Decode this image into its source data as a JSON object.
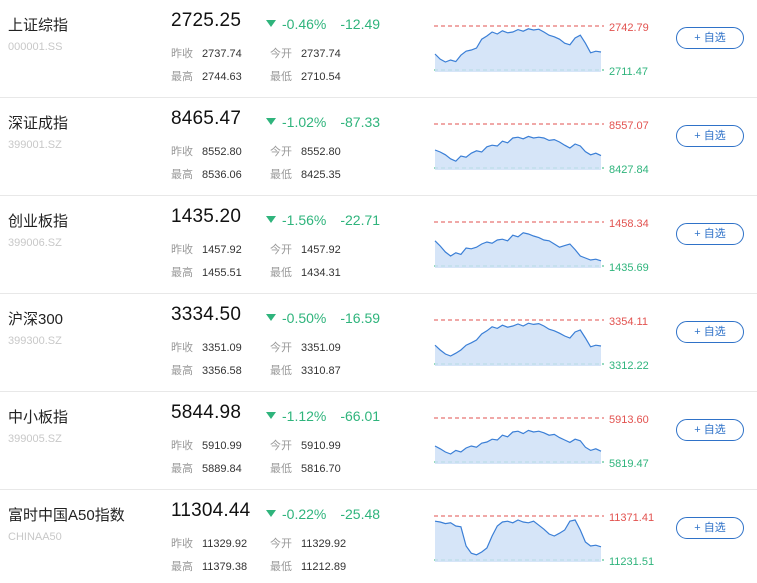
{
  "labels": {
    "prev_close": "昨收",
    "open": "今开",
    "high": "最高",
    "low": "最低",
    "add": "+ 自选"
  },
  "colors": {
    "down": "#2fb47c",
    "up_line": "#e2524f",
    "button": "#2f72c8",
    "chart_line": "#3b7fd6",
    "chart_fill": "#cfe1f7"
  },
  "icons": {
    "change_indicator": "triangle-down-icon"
  },
  "indices": [
    {
      "name": "上证综指",
      "code": "000001.SS",
      "price": "2725.25",
      "change_pct": "-0.46%",
      "change": "-12.49",
      "prev_close": "2737.74",
      "open": "2737.74",
      "high": "2744.63",
      "low": "2710.54",
      "chart_high": "2742.79",
      "chart_low": "2711.47",
      "spark": [
        0.35,
        0.22,
        0.15,
        0.2,
        0.16,
        0.32,
        0.42,
        0.45,
        0.5,
        0.72,
        0.8,
        0.9,
        0.85,
        0.93,
        0.88,
        0.9,
        0.96,
        0.92,
        0.98,
        0.95,
        0.97,
        0.9,
        0.82,
        0.78,
        0.72,
        0.62,
        0.58,
        0.75,
        0.82,
        0.62,
        0.38,
        0.42,
        0.4
      ]
    },
    {
      "name": "深证成指",
      "code": "399001.SZ",
      "price": "8465.47",
      "change_pct": "-1.02%",
      "change": "-87.33",
      "prev_close": "8552.80",
      "open": "8552.80",
      "high": "8536.06",
      "low": "8425.35",
      "chart_high": "8557.07",
      "chart_low": "8427.84",
      "spark": [
        0.4,
        0.35,
        0.28,
        0.18,
        0.12,
        0.25,
        0.22,
        0.32,
        0.38,
        0.35,
        0.48,
        0.52,
        0.5,
        0.62,
        0.58,
        0.7,
        0.72,
        0.68,
        0.74,
        0.7,
        0.72,
        0.7,
        0.64,
        0.66,
        0.6,
        0.52,
        0.45,
        0.55,
        0.5,
        0.36,
        0.28,
        0.32,
        0.26
      ]
    },
    {
      "name": "创业板指",
      "code": "399006.SZ",
      "price": "1435.20",
      "change_pct": "-1.56%",
      "change": "-22.71",
      "prev_close": "1457.92",
      "open": "1457.92",
      "high": "1455.51",
      "low": "1434.31",
      "chart_high": "1458.34",
      "chart_low": "1435.69",
      "spark": [
        0.58,
        0.45,
        0.3,
        0.2,
        0.28,
        0.24,
        0.4,
        0.38,
        0.42,
        0.5,
        0.55,
        0.52,
        0.6,
        0.62,
        0.58,
        0.72,
        0.68,
        0.78,
        0.75,
        0.7,
        0.66,
        0.6,
        0.58,
        0.5,
        0.42,
        0.46,
        0.5,
        0.36,
        0.2,
        0.15,
        0.1,
        0.12,
        0.08
      ]
    },
    {
      "name": "沪深300",
      "code": "399300.SZ",
      "price": "3334.50",
      "change_pct": "-0.50%",
      "change": "-16.59",
      "prev_close": "3351.09",
      "open": "3351.09",
      "high": "3356.58",
      "low": "3310.87",
      "chart_high": "3354.11",
      "chart_low": "3312.22",
      "spark": [
        0.42,
        0.3,
        0.2,
        0.15,
        0.22,
        0.3,
        0.42,
        0.48,
        0.55,
        0.7,
        0.78,
        0.88,
        0.84,
        0.92,
        0.87,
        0.9,
        0.95,
        0.9,
        0.97,
        0.94,
        0.96,
        0.9,
        0.82,
        0.78,
        0.72,
        0.65,
        0.6,
        0.75,
        0.8,
        0.6,
        0.38,
        0.42,
        0.4
      ]
    },
    {
      "name": "中小板指",
      "code": "399005.SZ",
      "price": "5844.98",
      "change_pct": "-1.12%",
      "change": "-66.01",
      "prev_close": "5910.99",
      "open": "5910.99",
      "high": "5889.84",
      "low": "5816.70",
      "chart_high": "5913.60",
      "chart_low": "5819.47",
      "spark": [
        0.35,
        0.28,
        0.2,
        0.15,
        0.24,
        0.2,
        0.3,
        0.35,
        0.32,
        0.42,
        0.45,
        0.52,
        0.5,
        0.62,
        0.58,
        0.7,
        0.72,
        0.66,
        0.74,
        0.7,
        0.72,
        0.68,
        0.62,
        0.64,
        0.56,
        0.5,
        0.44,
        0.52,
        0.48,
        0.32,
        0.24,
        0.28,
        0.22
      ]
    },
    {
      "name": "富时中国A50指数",
      "code": "CHINAA50",
      "price": "11304.44",
      "change_pct": "-0.22%",
      "change": "-25.48",
      "prev_close": "11329.92",
      "open": "11329.92",
      "high": "11379.38",
      "low": "11212.89",
      "chart_high": "11371.41",
      "chart_low": "11231.51",
      "spark": [
        0.92,
        0.9,
        0.86,
        0.88,
        0.8,
        0.78,
        0.3,
        0.12,
        0.08,
        0.15,
        0.25,
        0.55,
        0.8,
        0.9,
        0.92,
        0.88,
        0.95,
        0.9,
        0.88,
        0.92,
        0.82,
        0.72,
        0.6,
        0.55,
        0.62,
        0.7,
        0.92,
        0.95,
        0.7,
        0.4,
        0.3,
        0.32,
        0.28
      ]
    }
  ]
}
